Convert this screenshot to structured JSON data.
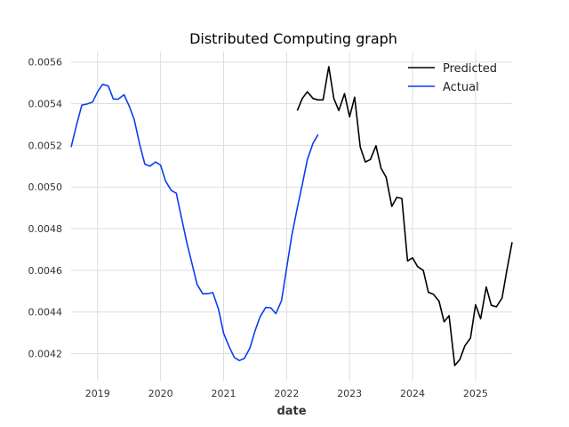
{
  "chart_data": {
    "type": "line",
    "title": "Distributed Computing graph",
    "xlabel": "date",
    "ylabel": "",
    "xlim": [
      2018.58,
      2025.58
    ],
    "ylim": [
      0.00407,
      0.00565
    ],
    "x_ticks": [
      2019,
      2020,
      2021,
      2022,
      2023,
      2024,
      2025
    ],
    "x_tick_labels": [
      "2019",
      "2020",
      "2021",
      "2022",
      "2023",
      "2024",
      "2025"
    ],
    "y_ticks": [
      0.0042,
      0.0044,
      0.0046,
      0.0048,
      0.005,
      0.0052,
      0.0054,
      0.0056
    ],
    "y_tick_labels": [
      "0.0042",
      "0.0044",
      "0.0046",
      "0.0048",
      "0.0050",
      "0.0052",
      "0.0054",
      "0.0056"
    ],
    "grid": true,
    "legend_position": "top-right",
    "series": [
      {
        "name": "Predicted",
        "color": "#000000",
        "x": [
          2022.17,
          2022.25,
          2022.33,
          2022.42,
          2022.5,
          2022.58,
          2022.67,
          2022.75,
          2022.83,
          2022.92,
          2023.0,
          2023.08,
          2023.17,
          2023.25,
          2023.33,
          2023.42,
          2023.5,
          2023.58,
          2023.67,
          2023.75,
          2023.83,
          2023.92,
          2024.0,
          2024.08,
          2024.17,
          2024.25,
          2024.33,
          2024.42,
          2024.5,
          2024.58,
          2024.67,
          2024.75,
          2024.83,
          2024.92,
          2025.0,
          2025.08,
          2025.17,
          2025.25,
          2025.33,
          2025.42,
          2025.5,
          2025.58
        ],
        "y": [
          0.005367,
          0.005425,
          0.005457,
          0.005425,
          0.005418,
          0.005418,
          0.005578,
          0.005425,
          0.005367,
          0.005448,
          0.005337,
          0.005431,
          0.005192,
          0.00512,
          0.005132,
          0.005198,
          0.00509,
          0.005047,
          0.004907,
          0.00495,
          0.004945,
          0.004645,
          0.00466,
          0.004618,
          0.0046,
          0.004495,
          0.004485,
          0.004452,
          0.004353,
          0.004382,
          0.004143,
          0.004172,
          0.004238,
          0.004275,
          0.004435,
          0.004367,
          0.00452,
          0.004432,
          0.004425,
          0.004467,
          0.004605,
          0.004735
        ]
      },
      {
        "name": "Actual",
        "color": "#0a3ff0",
        "x": [
          2018.58,
          2018.67,
          2018.75,
          2018.83,
          2018.92,
          2019.0,
          2019.08,
          2019.17,
          2019.25,
          2019.33,
          2019.42,
          2019.5,
          2019.58,
          2019.67,
          2019.75,
          2019.83,
          2019.92,
          2020.0,
          2020.08,
          2020.17,
          2020.25,
          2020.33,
          2020.42,
          2020.5,
          2020.58,
          2020.67,
          2020.75,
          2020.83,
          2020.92,
          2021.0,
          2021.08,
          2021.17,
          2021.25,
          2021.33,
          2021.42,
          2021.5,
          2021.58,
          2021.67,
          2021.75,
          2021.83,
          2021.92,
          2022.0,
          2022.08,
          2022.17,
          2022.25,
          2022.33,
          2022.42,
          2022.5
        ],
        "y": [
          0.005192,
          0.005303,
          0.005393,
          0.005398,
          0.005408,
          0.005457,
          0.005493,
          0.005485,
          0.005422,
          0.005422,
          0.005443,
          0.00539,
          0.005325,
          0.005203,
          0.00511,
          0.0051,
          0.00512,
          0.005105,
          0.005028,
          0.004983,
          0.00497,
          0.004855,
          0.004728,
          0.004632,
          0.004532,
          0.004487,
          0.004488,
          0.004493,
          0.004413,
          0.004298,
          0.00424,
          0.004182,
          0.004167,
          0.004177,
          0.004228,
          0.00431,
          0.004378,
          0.004422,
          0.00442,
          0.004392,
          0.004455,
          0.004608,
          0.004762,
          0.0049,
          0.005012,
          0.005132,
          0.00521,
          0.005252
        ]
      }
    ]
  }
}
